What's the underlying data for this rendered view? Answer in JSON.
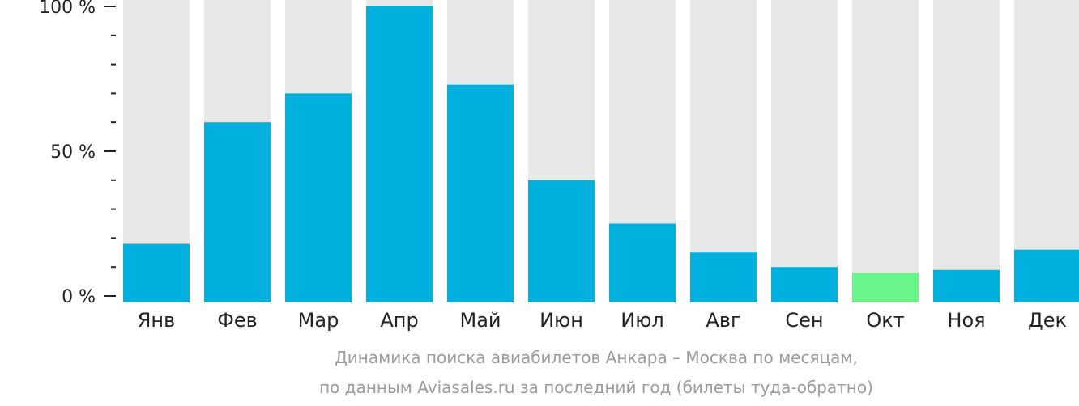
{
  "chart_data": {
    "type": "bar",
    "categories": [
      "Янв",
      "Фев",
      "Мар",
      "Апр",
      "Май",
      "Июн",
      "Июл",
      "Авг",
      "Сен",
      "Окт",
      "Ноя",
      "Дек"
    ],
    "values": [
      18,
      60,
      70,
      100,
      73,
      40,
      25,
      15,
      10,
      8,
      9,
      16
    ],
    "highlight_index": 9,
    "ylim": [
      0,
      100
    ],
    "yticks": [
      {
        "value": 0,
        "label": "0 %"
      },
      {
        "value": 50,
        "label": "50 %"
      },
      {
        "value": 100,
        "label": "100 %"
      }
    ],
    "minor_tick_step": 10,
    "colors": {
      "bar": "#00b0dd",
      "highlight": "#6af48a",
      "background_bar": "#e8e8e8",
      "axis": "#222222"
    }
  },
  "caption": {
    "line1": "Динамика поиска авиабилетов Анкара – Москва по месяцам,",
    "line2": "по данным Aviasales.ru за последний год (билеты туда-обратно)"
  }
}
